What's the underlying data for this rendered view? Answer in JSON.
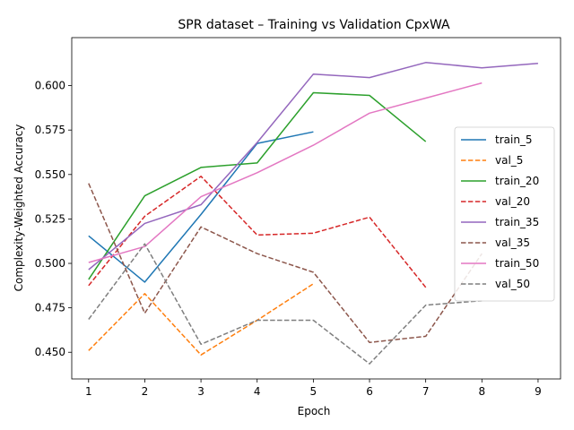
{
  "chart_data": {
    "type": "line",
    "title": "SPR dataset – Training vs Validation CpxWA",
    "xlabel": "Epoch",
    "ylabel": "Complexity-Weighted Accuracy",
    "xlim": [
      0.7,
      9.4
    ],
    "ylim": [
      0.435,
      0.627
    ],
    "xticks": [
      1,
      2,
      3,
      4,
      5,
      6,
      7,
      8,
      9
    ],
    "yticks": [
      0.45,
      0.475,
      0.5,
      0.525,
      0.55,
      0.575,
      0.6
    ],
    "ytick_labels": [
      "0.450",
      "0.475",
      "0.500",
      "0.525",
      "0.550",
      "0.575",
      "0.600"
    ],
    "grid": false,
    "legend_position": "center-right",
    "series": [
      {
        "name": "train_5",
        "color": "#1f77b4",
        "dash": false,
        "x": [
          1,
          2,
          3,
          4,
          5
        ],
        "y": [
          0.5155,
          0.4895,
          0.5275,
          0.5675,
          0.574
        ]
      },
      {
        "name": "val_5",
        "color": "#ff7f0e",
        "dash": true,
        "x": [
          1,
          2,
          3,
          4,
          5
        ],
        "y": [
          0.451,
          0.483,
          0.4485,
          0.468,
          0.4885
        ]
      },
      {
        "name": "train_20",
        "color": "#2ca02c",
        "dash": false,
        "x": [
          1,
          2,
          3,
          4,
          5,
          6,
          7
        ],
        "y": [
          0.491,
          0.538,
          0.554,
          0.5565,
          0.596,
          0.5945,
          0.5685
        ]
      },
      {
        "name": "val_20",
        "color": "#d62728",
        "dash": true,
        "x": [
          1,
          2,
          3,
          4,
          5,
          6,
          7
        ],
        "y": [
          0.4875,
          0.5265,
          0.549,
          0.516,
          0.517,
          0.526,
          0.4865
        ]
      },
      {
        "name": "train_35",
        "color": "#9467bd",
        "dash": false,
        "x": [
          1,
          2,
          3,
          4,
          5,
          6,
          7,
          8,
          9
        ],
        "y": [
          0.4965,
          0.5225,
          0.533,
          0.568,
          0.6065,
          0.6045,
          0.613,
          0.61,
          0.6125
        ]
      },
      {
        "name": "val_35",
        "color": "#8c564b",
        "dash": true,
        "x": [
          1,
          2,
          3,
          4,
          5,
          6,
          7,
          8
        ],
        "y": [
          0.545,
          0.472,
          0.5205,
          0.5055,
          0.495,
          0.4555,
          0.459,
          0.5055
        ]
      },
      {
        "name": "train_50",
        "color": "#e377c2",
        "dash": false,
        "x": [
          1,
          2,
          3,
          4,
          5,
          6,
          7,
          8
        ],
        "y": [
          0.5005,
          0.5095,
          0.5375,
          0.551,
          0.5665,
          0.5845,
          0.593,
          0.6015
        ]
      },
      {
        "name": "val_50",
        "color": "#7f7f7f",
        "dash": true,
        "x": [
          1,
          2,
          3,
          4,
          5,
          6,
          7,
          8
        ],
        "y": [
          0.4685,
          0.511,
          0.4545,
          0.468,
          0.468,
          0.4435,
          0.4765,
          0.479
        ]
      }
    ]
  }
}
